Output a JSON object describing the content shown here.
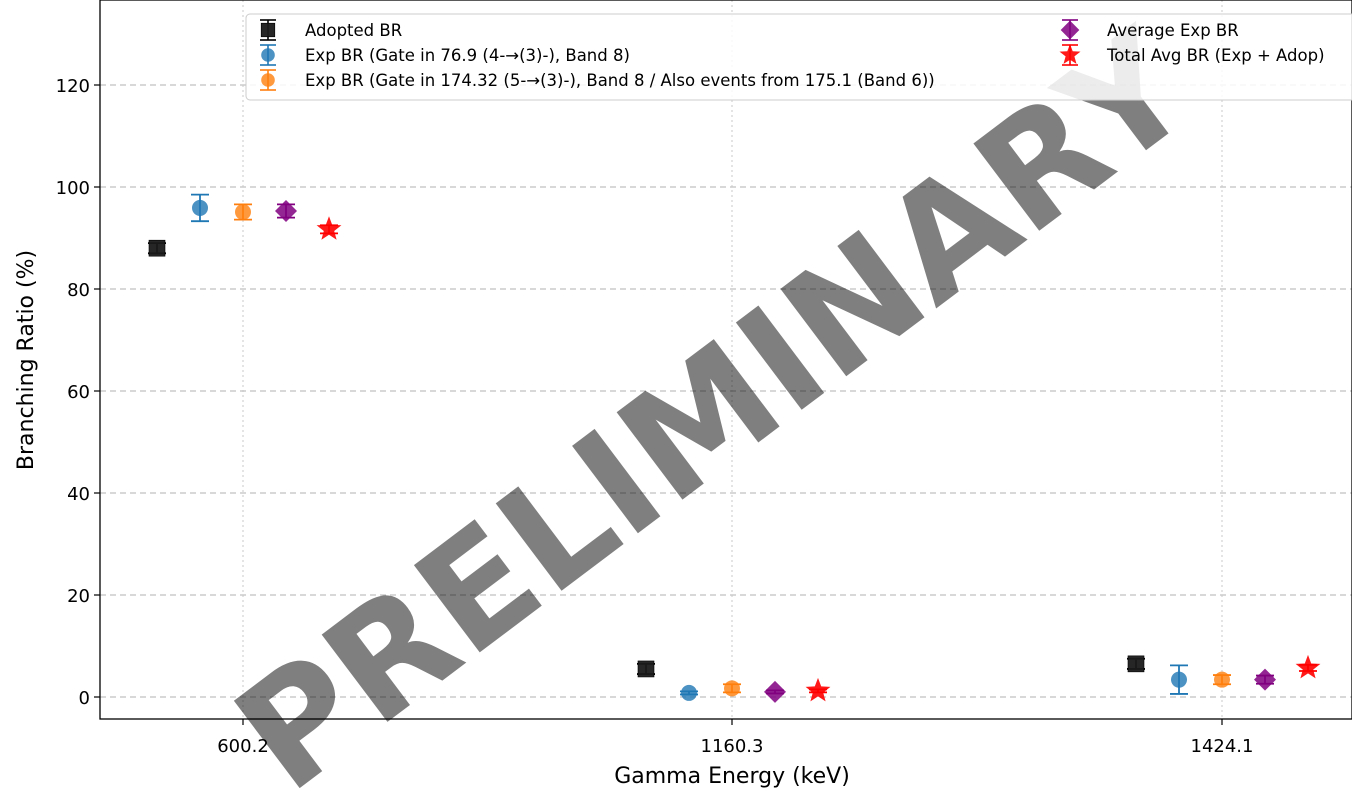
{
  "chart_data": {
    "type": "scatter",
    "title": "",
    "xlabel": "Gamma Energy (keV)",
    "ylabel": "Branching Ratio (%)",
    "categories": [
      "600.2",
      "1160.3",
      "1424.1"
    ],
    "ylim": [
      -4.5,
      137
    ],
    "yticks": [
      0,
      20,
      40,
      60,
      80,
      100,
      120
    ],
    "grid": "dashed-y, dotted-x",
    "legend_placement": "top",
    "watermark": "PRELIMINARY",
    "series": [
      {
        "name": "Adopted BR",
        "marker": "square",
        "color": "#1a1a1a",
        "values": [
          88.0,
          5.5,
          6.5
        ],
        "errors": [
          1.0,
          1.0,
          1.0
        ]
      },
      {
        "name": "Exp BR (Gate in 76.9 (4-→(3)-), Band 8)",
        "marker": "circle",
        "color": "#1f77b4",
        "values": [
          95.9,
          0.8,
          3.4
        ],
        "errors": [
          2.6,
          0.3,
          2.8
        ]
      },
      {
        "name": "Exp BR (Gate in 174.32 (5-→(3)-), Band 8 / Also events from 175.1 (Band 6))",
        "marker": "circle",
        "color": "#ff7f0e",
        "values": [
          95.1,
          1.7,
          3.4
        ],
        "errors": [
          1.5,
          0.8,
          0.9
        ]
      },
      {
        "name": "Average Exp BR",
        "marker": "diamond",
        "color": "#800080",
        "values": [
          95.3,
          1.0,
          3.4
        ],
        "errors": [
          1.3,
          0.3,
          0.8
        ]
      },
      {
        "name": "Total Avg BR (Exp + Adop)",
        "marker": "star",
        "color": "#ff0000",
        "values": [
          91.7,
          1.2,
          5.7
        ],
        "errors": [
          0.8,
          0.3,
          0.6
        ]
      }
    ]
  }
}
